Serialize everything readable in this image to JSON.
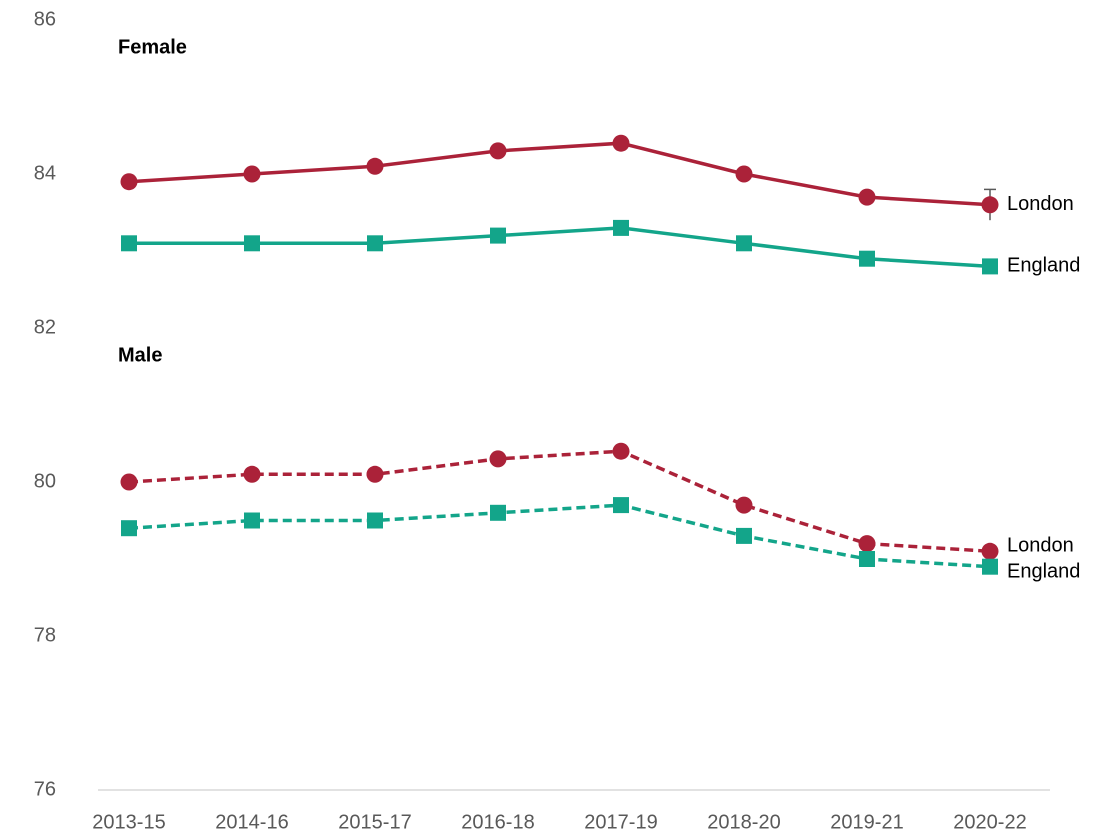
{
  "chart_data": {
    "type": "line",
    "categories": [
      "2013-15",
      "2014-16",
      "2015-17",
      "2016-18",
      "2017-19",
      "2018-20",
      "2019-21",
      "2020-22"
    ],
    "ylim": [
      76,
      86
    ],
    "yticks": [
      76,
      78,
      80,
      82,
      84,
      86
    ],
    "grid": false,
    "panels": [
      {
        "label": "Female",
        "dashed": false,
        "series": [
          {
            "name": "London",
            "color": "#ab2239",
            "marker": "circle",
            "values": [
              83.9,
              84.0,
              84.1,
              84.3,
              84.4,
              84.0,
              83.7,
              83.6
            ],
            "errors": [
              0.05,
              0.05,
              0.05,
              0.05,
              0.05,
              0.05,
              0.05,
              0.2
            ]
          },
          {
            "name": "England",
            "color": "#13a58a",
            "marker": "square",
            "values": [
              83.1,
              83.1,
              83.1,
              83.2,
              83.3,
              83.1,
              82.9,
              82.8
            ]
          }
        ]
      },
      {
        "label": "Male",
        "dashed": true,
        "series": [
          {
            "name": "London",
            "color": "#ab2239",
            "marker": "circle",
            "values": [
              80.0,
              80.1,
              80.1,
              80.3,
              80.4,
              79.7,
              79.2,
              79.1
            ],
            "errors": [
              0.05,
              0.05,
              0.05,
              0.05,
              0.05,
              0.05,
              0.05,
              0.05
            ]
          },
          {
            "name": "England",
            "color": "#13a58a",
            "marker": "square",
            "values": [
              79.4,
              79.5,
              79.5,
              79.6,
              79.7,
              79.3,
              79.0,
              78.9
            ]
          }
        ]
      }
    ]
  }
}
